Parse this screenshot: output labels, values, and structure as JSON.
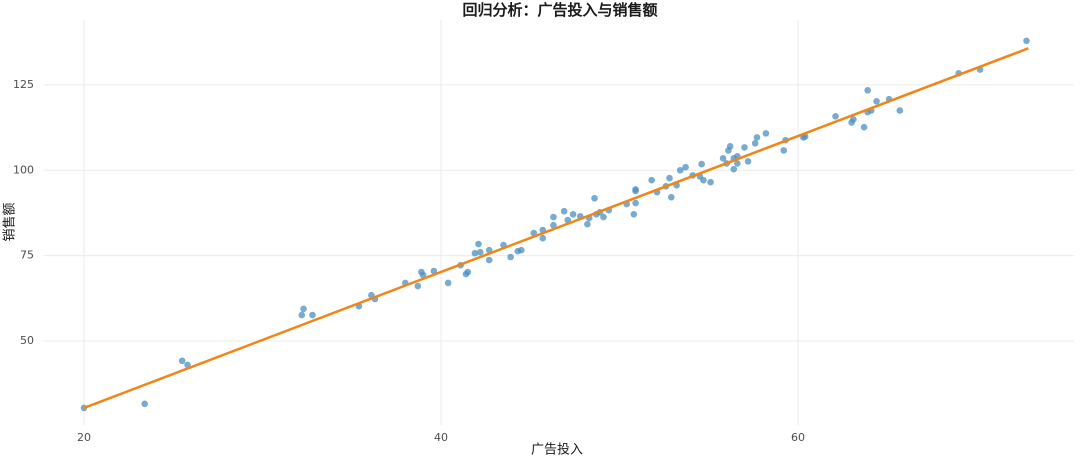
{
  "chart_data": {
    "type": "scatter",
    "title": "回归分析：广告投入与销售额",
    "x_label": "广告投入",
    "y_label": "销售额",
    "color": "#4a8fc0",
    "x": [
      20.0,
      23.4,
      25.5,
      25.8,
      32.2,
      32.3,
      32.8,
      35.4,
      36.1,
      36.3,
      38.0,
      38.7,
      38.9,
      39.0,
      39.6,
      40.4,
      41.1,
      41.4,
      41.5,
      41.9,
      42.1,
      42.2,
      42.7,
      42.7,
      43.5,
      43.9,
      44.3,
      44.5,
      45.2,
      45.7,
      45.7,
      46.3,
      46.3,
      46.9,
      47.1,
      47.4,
      47.8,
      48.2,
      48.3,
      48.6,
      48.7,
      48.9,
      49.1,
      49.4,
      50.4,
      50.8,
      50.9,
      50.9,
      50.9,
      51.8,
      52.1,
      52.6,
      52.8,
      52.9,
      53.2,
      53.4,
      53.7,
      54.1,
      54.5,
      54.6,
      54.7,
      55.1,
      55.8,
      56.0,
      56.1,
      56.2,
      56.4,
      56.4,
      56.6,
      56.6,
      57.0,
      57.2,
      57.6,
      57.7,
      58.2,
      59.2,
      59.3,
      60.3,
      60.4,
      62.1,
      63.0,
      63.1,
      63.7,
      63.9,
      63.9,
      64.1,
      64.4,
      65.1,
      65.7,
      69.0,
      70.2,
      72.8
    ],
    "values": [
      30.4,
      31.6,
      44.2,
      43.0,
      57.6,
      59.4,
      57.6,
      60.2,
      63.4,
      62.3,
      67.0,
      66.1,
      70.2,
      69.3,
      70.5,
      67.0,
      72.2,
      69.6,
      70.2,
      75.7,
      78.4,
      76.0,
      73.7,
      76.6,
      78.1,
      74.6,
      76.3,
      76.6,
      81.6,
      82.5,
      80.1,
      83.9,
      86.3,
      88.0,
      85.4,
      87.1,
      86.5,
      84.2,
      86.0,
      91.8,
      87.1,
      87.7,
      86.3,
      88.3,
      90.1,
      87.1,
      90.4,
      94.4,
      93.9,
      97.1,
      93.6,
      95.3,
      97.7,
      92.1,
      95.6,
      100.0,
      100.9,
      98.5,
      98.2,
      101.8,
      97.1,
      96.5,
      103.5,
      102.0,
      105.8,
      107.0,
      103.5,
      100.3,
      102.0,
      104.1,
      106.7,
      102.6,
      107.9,
      109.6,
      110.8,
      105.8,
      108.8,
      109.6,
      109.9,
      115.8,
      114.0,
      114.9,
      112.6,
      123.4,
      117.0,
      117.5,
      120.2,
      120.8,
      117.5,
      128.4,
      129.5,
      137.9
    ],
    "fit": {
      "x": [
        20,
        72.9
      ],
      "values": [
        30.4,
        135.7
      ],
      "color": "#f28518"
    },
    "xlim": [
      17.76,
      75.46
    ],
    "ylim": [
      25.4,
      144
    ],
    "xticks": [
      20,
      40,
      60
    ],
    "yticks": [
      50,
      75,
      100,
      125
    ],
    "grid": true
  }
}
